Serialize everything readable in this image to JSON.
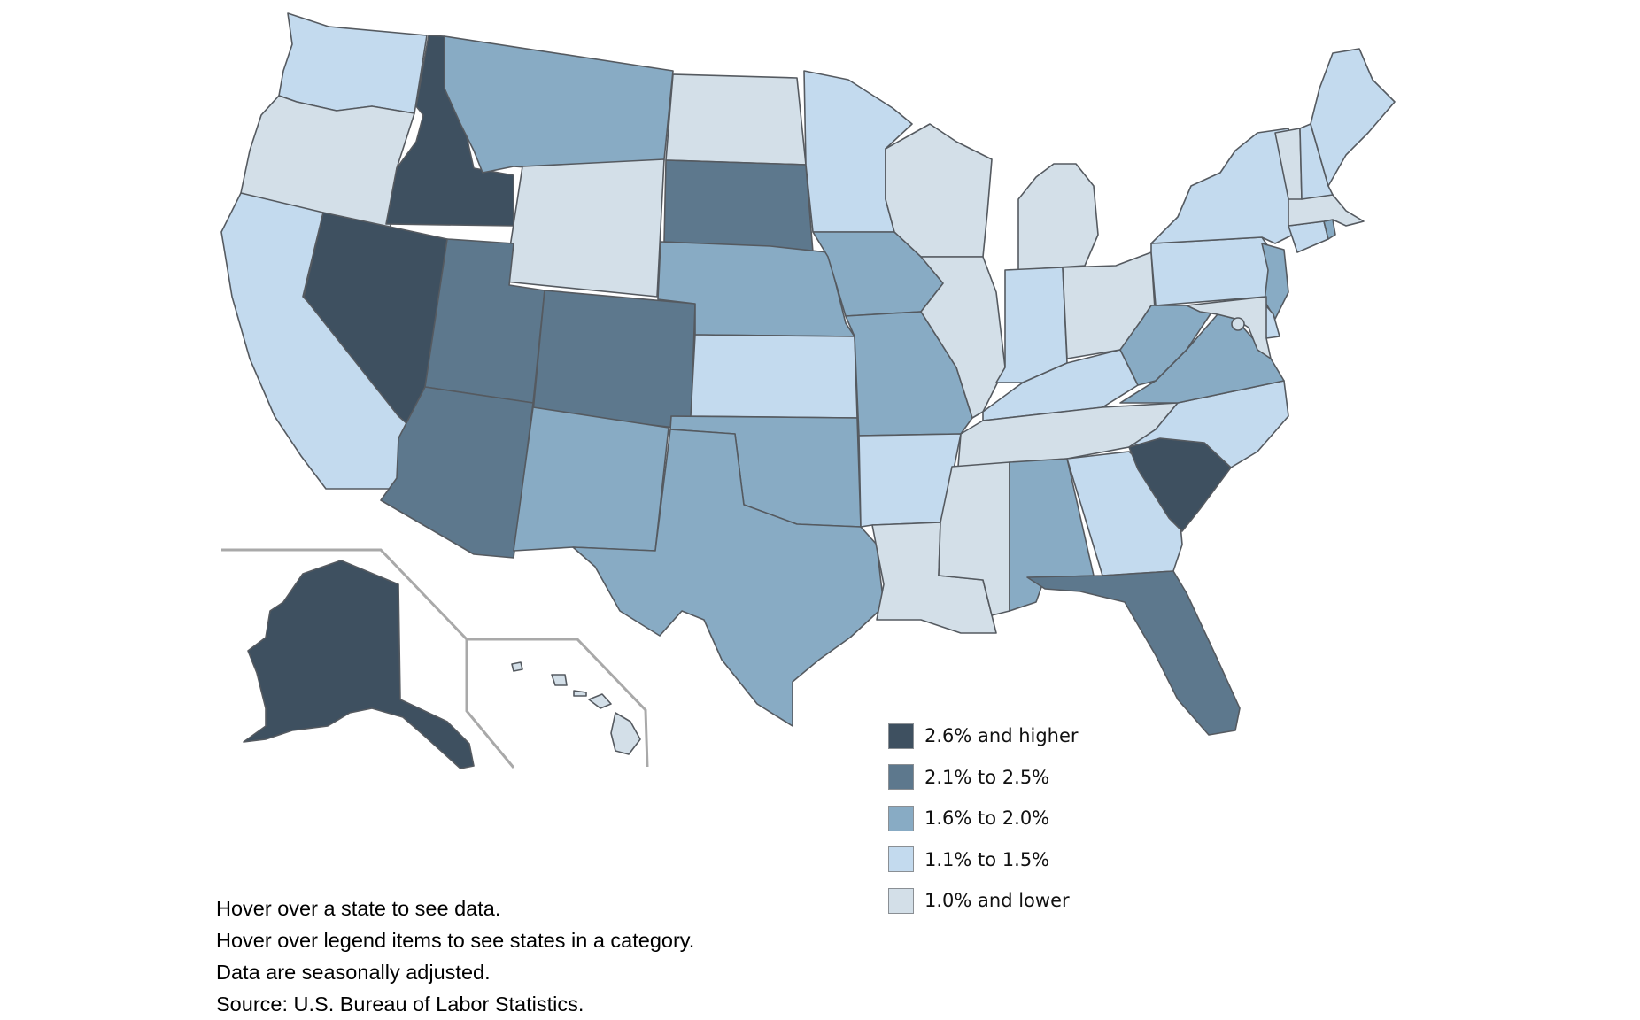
{
  "colors": {
    "c1": "#3e5060",
    "c2": "#5d788d",
    "c3": "#88abc4",
    "c4": "#c3daee",
    "c5": "#d3dfe8"
  },
  "legend": [
    {
      "key": "c1",
      "label": "2.6% and higher"
    },
    {
      "key": "c2",
      "label": "2.1% to 2.5%"
    },
    {
      "key": "c3",
      "label": "1.6% to 2.0%"
    },
    {
      "key": "c4",
      "label": "1.1% to 1.5%"
    },
    {
      "key": "c5",
      "label": "1.0% and lower"
    }
  ],
  "notes": [
    "Hover over a state to see data.",
    "Hover over legend items to see states in a category.",
    "Data are seasonally adjusted.",
    "Source: U.S. Bureau of Labor Statistics."
  ],
  "states": {
    "WA": "c4",
    "OR": "c5",
    "CA": "c4",
    "ID": "c1",
    "NV": "c1",
    "MT": "c3",
    "WY": "c5",
    "UT": "c2",
    "AZ": "c2",
    "CO": "c2",
    "NM": "c3",
    "ND": "c5",
    "SD": "c2",
    "NE": "c3",
    "KS": "c4",
    "OK": "c3",
    "TX": "c3",
    "MN": "c4",
    "IA": "c3",
    "MO": "c3",
    "AR": "c4",
    "LA": "c5",
    "WI": "c5",
    "IL": "c5",
    "MI": "c5",
    "IN": "c4",
    "OH": "c5",
    "KY": "c4",
    "TN": "c5",
    "MS": "c5",
    "AL": "c3",
    "GA": "c4",
    "FL": "c2",
    "SC": "c1",
    "NC": "c4",
    "VA": "c3",
    "WV": "c3",
    "PA": "c4",
    "NY": "c4",
    "NJ": "c3",
    "DE": "c4",
    "MD": "c5",
    "DC": "c5",
    "CT": "c4",
    "RI": "c3",
    "MA": "c5",
    "VT": "c5",
    "NH": "c4",
    "ME": "c4",
    "AK": "c1",
    "HI": "c5"
  }
}
